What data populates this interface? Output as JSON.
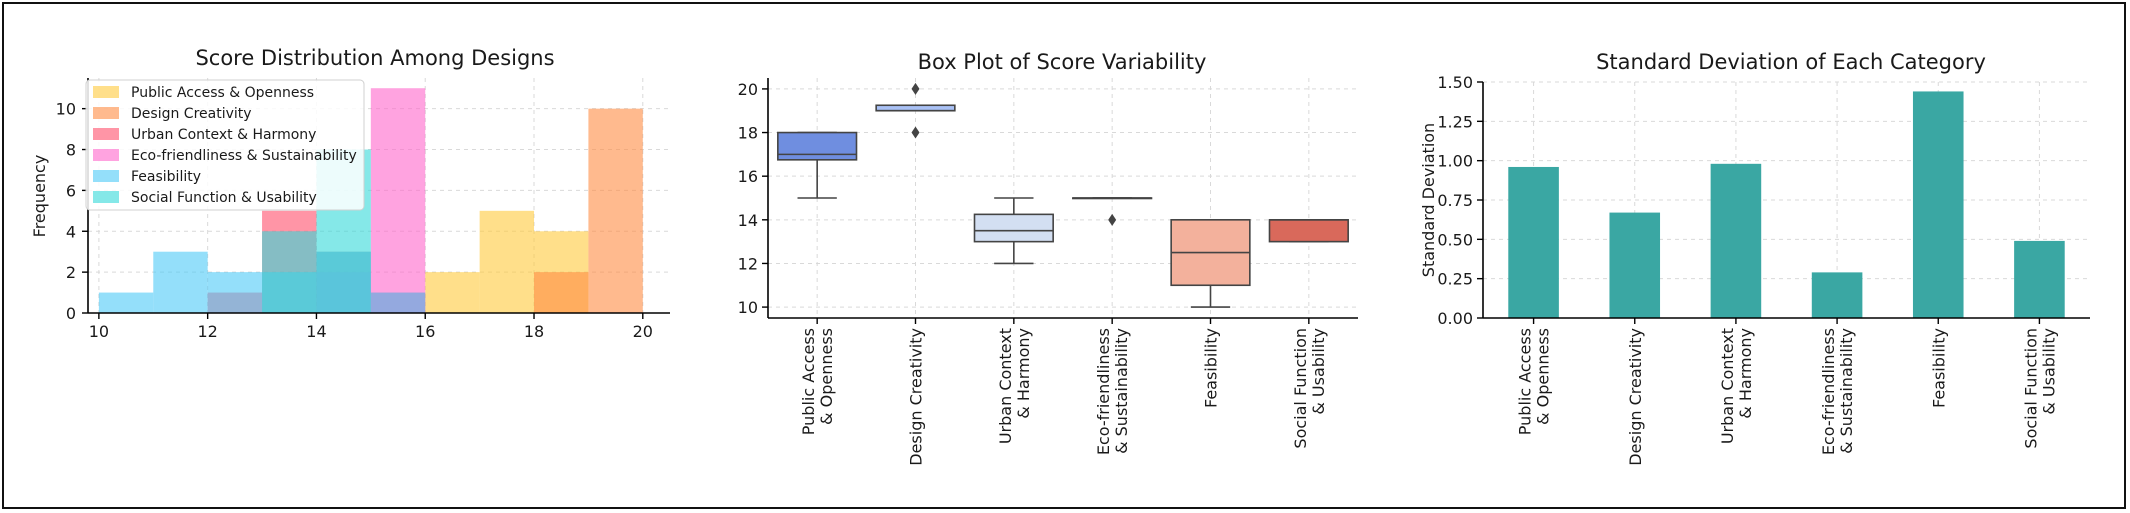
{
  "chart_data": [
    {
      "type": "histogram",
      "title": "Score Distribution Among Designs",
      "xlabel": "",
      "ylabel": "Frequency",
      "xlim": [
        9.8,
        20.5
      ],
      "ylim": [
        0,
        11.5
      ],
      "xticks": [
        10,
        12,
        14,
        16,
        18,
        20
      ],
      "yticks": [
        0,
        2,
        4,
        6,
        8,
        10
      ],
      "legend_position": "top-left",
      "grid": true,
      "series": [
        {
          "name": "Public Access & Openness",
          "color": "#ffc93c",
          "bins": [
            {
              "x0": 16,
              "x1": 17,
              "count": 2
            },
            {
              "x0": 17,
              "x1": 18,
              "count": 5
            },
            {
              "x0": 18,
              "x1": 19,
              "count": 4
            }
          ]
        },
        {
          "name": "Design Creativity",
          "color": "#ff8c42",
          "bins": [
            {
              "x0": 18,
              "x1": 19,
              "count": 2
            },
            {
              "x0": 19,
              "x1": 20,
              "count": 10
            }
          ]
        },
        {
          "name": "Urban Context & Harmony",
          "color": "#ff4e6b",
          "bins": [
            {
              "x0": 12,
              "x1": 13,
              "count": 1
            },
            {
              "x0": 13,
              "x1": 14,
              "count": 5
            },
            {
              "x0": 14,
              "x1": 15,
              "count": 3
            },
            {
              "x0": 15,
              "x1": 16,
              "count": 1
            }
          ]
        },
        {
          "name": "Eco-friendliness & Sustainability",
          "color": "#ff66cc",
          "bins": [
            {
              "x0": 14,
              "x1": 15,
              "count": 2
            },
            {
              "x0": 15,
              "x1": 16,
              "count": 11
            }
          ]
        },
        {
          "name": "Feasibility",
          "color": "#4dc9f6",
          "bins": [
            {
              "x0": 10,
              "x1": 11,
              "count": 1
            },
            {
              "x0": 11,
              "x1": 12,
              "count": 3
            },
            {
              "x0": 12,
              "x1": 13,
              "count": 2
            },
            {
              "x0": 13,
              "x1": 14,
              "count": 2
            },
            {
              "x0": 14,
              "x1": 15,
              "count": 3
            },
            {
              "x0": 15,
              "x1": 16,
              "count": 1
            }
          ]
        },
        {
          "name": "Social Function & Usability",
          "color": "#33d9d9",
          "bins": [
            {
              "x0": 13,
              "x1": 14,
              "count": 4
            },
            {
              "x0": 14,
              "x1": 15,
              "count": 8
            }
          ]
        }
      ]
    },
    {
      "type": "box",
      "title": "Box Plot of Score Variability",
      "xlabel": "",
      "ylabel": "",
      "ylim": [
        9.5,
        20.5
      ],
      "yticks": [
        10,
        12,
        14,
        16,
        18,
        20
      ],
      "grid": true,
      "categories": [
        "Public Access\n& Openness",
        "Design Creativity",
        "Urban Context\n& Harmony",
        "Eco-friendliness\n& Sustainability",
        "Feasibility",
        "Social Function\n& Usability"
      ],
      "boxes": [
        {
          "q1": 16.75,
          "median": 17,
          "q3": 18,
          "whislo": 15,
          "whishi": 18,
          "fliers": [],
          "color": "#6f8ee0"
        },
        {
          "q1": 19,
          "median": 19,
          "q3": 19.25,
          "whislo": 19,
          "whishi": 19.25,
          "fliers": [
            18,
            20
          ],
          "color": "#a9c1f5"
        },
        {
          "q1": 13,
          "median": 13.5,
          "q3": 14.25,
          "whislo": 12,
          "whishi": 15,
          "fliers": [],
          "color": "#d3dff2"
        },
        {
          "q1": 15,
          "median": 15,
          "q3": 15,
          "whislo": 15,
          "whishi": 15,
          "fliers": [
            14
          ],
          "color": "#eeeeee"
        },
        {
          "q1": 11,
          "median": 12.5,
          "q3": 14,
          "whislo": 10,
          "whishi": 14,
          "fliers": [],
          "color": "#f3b19c"
        },
        {
          "q1": 13,
          "median": 14,
          "q3": 14,
          "whislo": 13,
          "whishi": 14,
          "fliers": [],
          "color": "#d9695b"
        }
      ]
    },
    {
      "type": "bar",
      "title": "Standard Deviation of Each Category",
      "xlabel": "",
      "ylabel": "Standard Deviation",
      "ylim": [
        0,
        1.5
      ],
      "yticks": [
        "0.00",
        "0.25",
        "0.50",
        "0.75",
        "1.00",
        "1.25",
        "1.50"
      ],
      "grid": true,
      "color": "#3aa7a3",
      "categories": [
        "Public Access\n& Openness",
        "Design Creativity",
        "Urban Context\n& Harmony",
        "Eco-friendliness\n& Sustainability",
        "Feasibility",
        "Social Function\n& Usability"
      ],
      "values": [
        0.96,
        0.67,
        0.98,
        0.29,
        1.44,
        0.49
      ]
    }
  ]
}
